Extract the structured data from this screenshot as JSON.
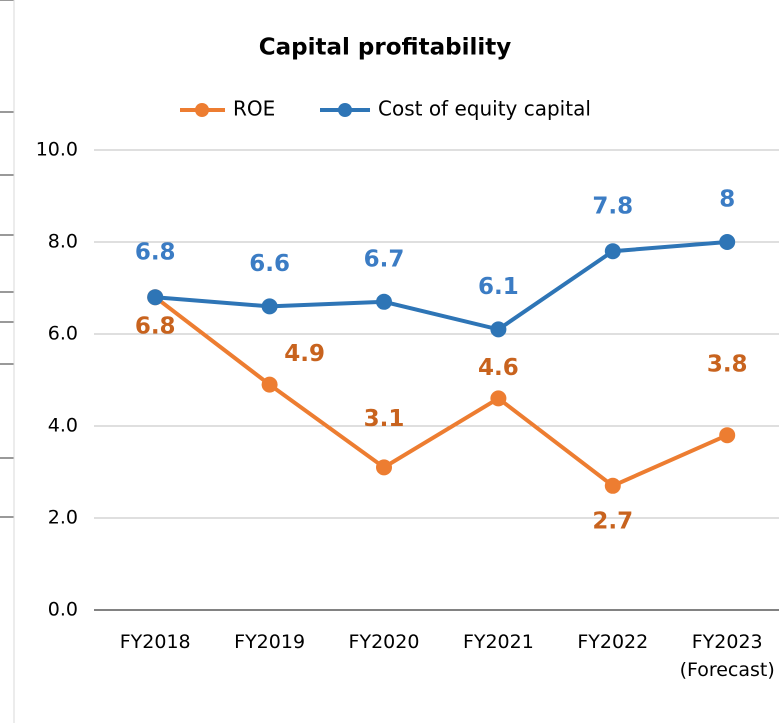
{
  "chart_data": {
    "type": "line",
    "title": "Capital profitability",
    "categories": [
      "FY2018",
      "FY2019",
      "FY2020",
      "FY2021",
      "FY2022",
      "FY2023\n(Forecast)"
    ],
    "series": [
      {
        "name": "ROE",
        "color": "#ED7D31",
        "label_color": "#C8631E",
        "values": [
          6.8,
          4.9,
          3.1,
          4.6,
          2.7,
          3.8
        ]
      },
      {
        "name": "Cost of equity capital",
        "color": "#2E75B6",
        "label_color": "#3B7CC4",
        "values": [
          6.8,
          6.6,
          6.7,
          6.1,
          7.8,
          8.0
        ]
      }
    ],
    "ylim": [
      0,
      10
    ],
    "yticks": [
      {
        "value": 0,
        "label": "0.0"
      },
      {
        "value": 2,
        "label": "2.0"
      },
      {
        "value": 4,
        "label": "4.0"
      },
      {
        "value": 6,
        "label": "6.0"
      },
      {
        "value": 8,
        "label": "8.0"
      },
      {
        "value": 10,
        "label": "10.0"
      }
    ],
    "grid": true,
    "legend": "top"
  }
}
